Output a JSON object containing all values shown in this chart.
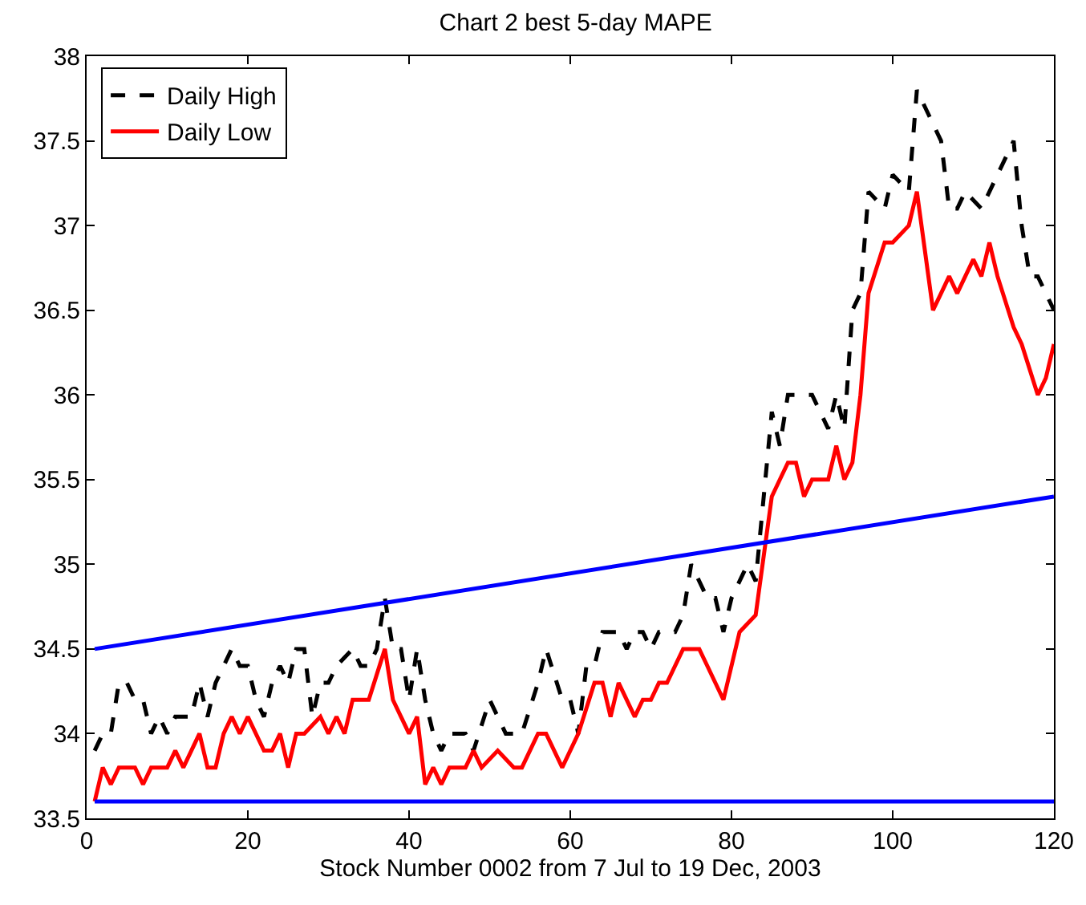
{
  "chart_data": {
    "type": "line",
    "title": "Chart 2 best 5-day MAPE",
    "xlabel": "Stock Number 0002 from 7 Jul to 19 Dec, 2003",
    "xlim": [
      0,
      120
    ],
    "xticks": [
      0,
      20,
      40,
      60,
      80,
      100,
      120
    ],
    "ylim": [
      33.5,
      38
    ],
    "yticks": [
      33.5,
      34,
      34.5,
      35,
      35.5,
      36,
      36.5,
      37,
      37.5,
      38
    ],
    "grid": false,
    "legend": "top left",
    "marker": "none",
    "series": [
      {
        "name": "Daily High",
        "color": "#000000",
        "line_style": "dashed",
        "x": [
          1,
          2,
          3,
          4,
          5,
          6,
          7,
          8,
          9,
          10,
          11,
          13,
          14,
          15,
          16,
          18,
          19,
          20,
          21,
          22,
          23,
          24,
          25,
          26,
          27,
          28,
          29,
          30,
          31,
          33,
          34,
          35,
          36,
          37,
          38,
          39,
          40,
          41,
          42,
          43,
          44,
          45,
          47,
          48,
          50,
          51,
          52,
          54,
          56,
          57,
          59,
          60,
          61,
          62,
          63,
          64,
          66,
          67,
          68,
          69,
          70,
          71,
          73,
          74,
          75,
          77,
          78,
          79,
          80,
          81,
          82,
          83,
          85,
          86,
          87,
          88,
          90,
          92,
          93,
          94,
          95,
          96,
          97,
          99,
          100,
          102,
          103,
          105,
          106,
          107,
          108,
          109,
          111,
          113,
          115,
          116,
          117,
          118,
          120
        ],
        "values": [
          33.9,
          34.0,
          34.0,
          34.3,
          34.3,
          34.2,
          34.2,
          34.0,
          34.1,
          34.0,
          34.1,
          34.1,
          34.3,
          34.1,
          34.3,
          34.5,
          34.4,
          34.4,
          34.2,
          34.1,
          34.3,
          34.4,
          34.3,
          34.5,
          34.5,
          34.1,
          34.3,
          34.3,
          34.4,
          34.5,
          34.4,
          34.4,
          34.5,
          34.8,
          34.5,
          34.5,
          34.2,
          34.5,
          34.2,
          34.0,
          33.9,
          34.0,
          34.0,
          33.9,
          34.2,
          34.1,
          34.0,
          34.0,
          34.3,
          34.5,
          34.2,
          34.2,
          34.0,
          34.4,
          34.4,
          34.6,
          34.6,
          34.5,
          34.6,
          34.6,
          34.5,
          34.6,
          34.6,
          34.7,
          35.0,
          34.8,
          34.8,
          34.6,
          34.8,
          34.9,
          35.0,
          34.9,
          35.9,
          35.7,
          36.0,
          36.0,
          36.0,
          35.8,
          36.0,
          35.8,
          36.5,
          36.6,
          37.2,
          37.1,
          37.3,
          37.2,
          37.8,
          37.6,
          37.5,
          37.1,
          37.1,
          37.2,
          37.1,
          37.3,
          37.5,
          37.0,
          36.7,
          36.7,
          36.5
        ]
      },
      {
        "name": "Daily Low",
        "color": "#ff0000",
        "line_style": "solid",
        "x": [
          1,
          2,
          3,
          4,
          6,
          7,
          8,
          10,
          11,
          12,
          14,
          15,
          16,
          17,
          18,
          19,
          20,
          22,
          23,
          24,
          25,
          26,
          27,
          29,
          30,
          31,
          32,
          33,
          35,
          37,
          38,
          39,
          40,
          41,
          42,
          43,
          44,
          45,
          47,
          48,
          49,
          51,
          53,
          54,
          56,
          57,
          59,
          61,
          63,
          64,
          65,
          66,
          68,
          69,
          70,
          71,
          72,
          74,
          76,
          77,
          79,
          81,
          83,
          85,
          86,
          87,
          88,
          89,
          90,
          92,
          93,
          94,
          95,
          96,
          97,
          99,
          100,
          102,
          103,
          105,
          106,
          107,
          108,
          110,
          111,
          112,
          113,
          115,
          116,
          118,
          119,
          120
        ],
        "values": [
          33.6,
          33.8,
          33.7,
          33.8,
          33.8,
          33.7,
          33.8,
          33.8,
          33.9,
          33.8,
          34.0,
          33.8,
          33.8,
          34.0,
          34.1,
          34.0,
          34.1,
          33.9,
          33.9,
          34.0,
          33.8,
          34.0,
          34.0,
          34.1,
          34.0,
          34.1,
          34.0,
          34.2,
          34.2,
          34.5,
          34.2,
          34.1,
          34.0,
          34.1,
          33.7,
          33.8,
          33.7,
          33.8,
          33.8,
          33.9,
          33.8,
          33.9,
          33.8,
          33.8,
          34.0,
          34.0,
          33.8,
          34.0,
          34.3,
          34.3,
          34.1,
          34.3,
          34.1,
          34.2,
          34.2,
          34.3,
          34.3,
          34.5,
          34.5,
          34.4,
          34.2,
          34.6,
          34.7,
          35.4,
          35.5,
          35.6,
          35.6,
          35.4,
          35.5,
          35.5,
          35.7,
          35.5,
          35.6,
          36.0,
          36.6,
          36.9,
          36.9,
          37.0,
          37.2,
          36.5,
          36.6,
          36.7,
          36.6,
          36.8,
          36.7,
          36.9,
          36.7,
          36.4,
          36.3,
          36.0,
          36.1,
          36.3
        ]
      },
      {
        "color": "#0000ff",
        "line_style": "solid",
        "x": [
          1,
          120
        ],
        "values": [
          34.5,
          35.4
        ]
      },
      {
        "color": "#0000ff",
        "line_style": "solid",
        "x": [
          1,
          120
        ],
        "values": [
          33.6,
          33.6
        ]
      }
    ]
  }
}
